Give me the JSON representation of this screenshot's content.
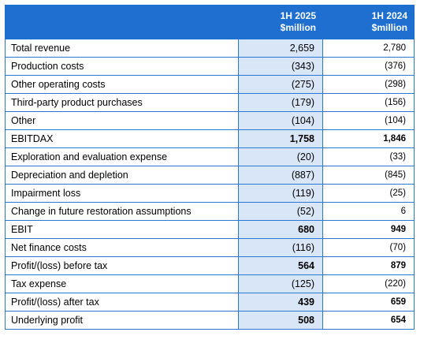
{
  "header": {
    "col_2025_line1": "1H 2025",
    "col_2025_line2": "$million",
    "col_2024_line1": "1H 2024",
    "col_2024_line2": "$million"
  },
  "rows": [
    {
      "label": "Total revenue",
      "v2025": "2,659",
      "v2024": "2,780",
      "bold": false
    },
    {
      "label": "Production costs",
      "v2025": "(343)",
      "v2024": "(376)",
      "bold": false
    },
    {
      "label": "Other operating costs",
      "v2025": "(275)",
      "v2024": "(298)",
      "bold": false
    },
    {
      "label": "Third-party product purchases",
      "v2025": "(179)",
      "v2024": "(156)",
      "bold": false
    },
    {
      "label": "Other",
      "v2025": "(104)",
      "v2024": "(104)",
      "bold": false
    },
    {
      "label": "EBITDAX",
      "v2025": "1,758",
      "v2024": "1,846",
      "bold": true
    },
    {
      "label": "Exploration and evaluation expense",
      "v2025": "(20)",
      "v2024": "(33)",
      "bold": false
    },
    {
      "label": "Depreciation and depletion",
      "v2025": "(887)",
      "v2024": "(845)",
      "bold": false
    },
    {
      "label": "Impairment loss",
      "v2025": "(119)",
      "v2024": "(25)",
      "bold": false
    },
    {
      "label": "Change in future restoration assumptions",
      "v2025": "(52)",
      "v2024": "6",
      "bold": false
    },
    {
      "label": "EBIT",
      "v2025": "680",
      "v2024": "949",
      "bold": true
    },
    {
      "label": "Net finance costs",
      "v2025": "(116)",
      "v2024": "(70)",
      "bold": false
    },
    {
      "label": "Profit/(loss) before tax",
      "v2025": "564",
      "v2024": "879",
      "bold": true
    },
    {
      "label": "Tax expense",
      "v2025": "(125)",
      "v2024": "(220)",
      "bold": false
    },
    {
      "label": "Profit/(loss) after tax",
      "v2025": "439",
      "v2024": "659",
      "bold": true
    },
    {
      "label": "Underlying profit",
      "v2025": "508",
      "v2024": "654",
      "bold": true
    }
  ]
}
